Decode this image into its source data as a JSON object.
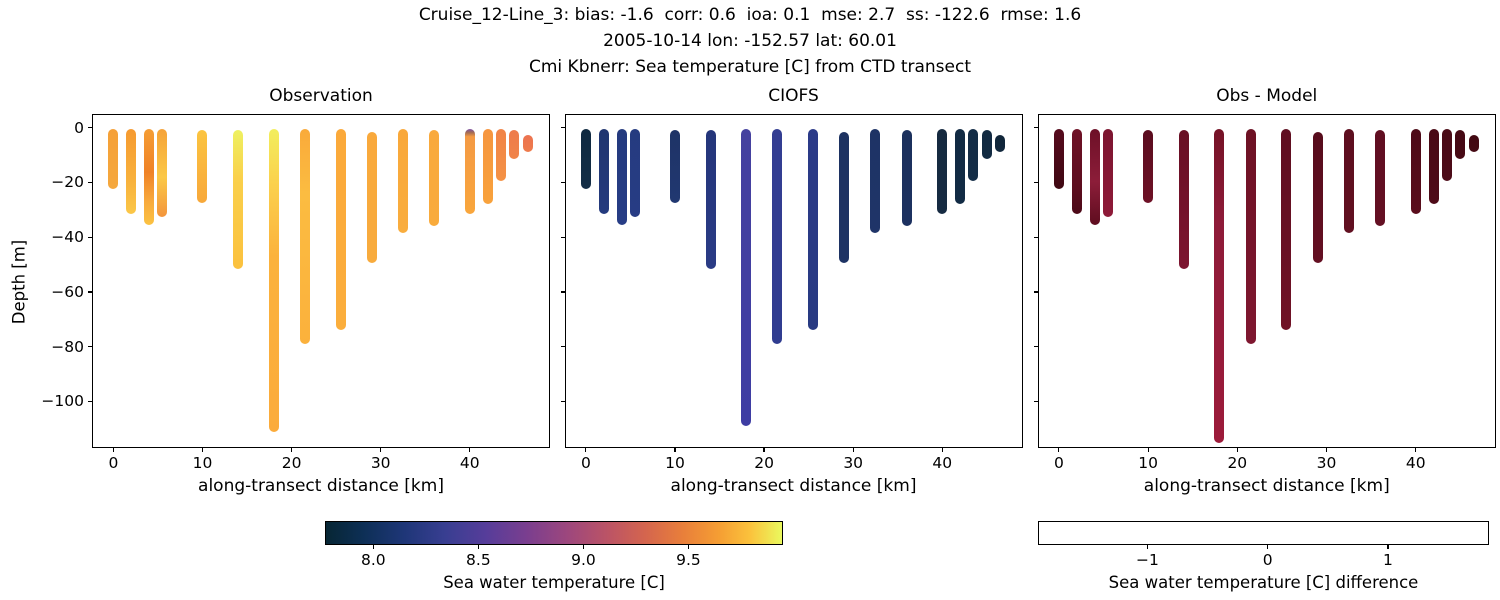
{
  "figure_title": {
    "line1": "Cruise_12-Line_3: bias: -1.6  corr: 0.6  ioa: 0.1  mse: 2.7  ss: -122.6  rmse: 1.6",
    "line2": "2005-10-14 lon: -152.57 lat: 60.01",
    "line3": "Cmi Kbnerr: Sea temperature [C] from CTD transect"
  },
  "chart_data": {
    "type": "scatter",
    "description": "Three-panel CTD transect section plot: vertical temperature casts colored by value, versus depth and along-transect distance",
    "xlabel": "along-transect distance [km]",
    "ylabel": "Depth [m]",
    "xlim": [
      -2.4,
      49
    ],
    "ylim": [
      -117,
      5
    ],
    "xticks": [
      0,
      10,
      20,
      30,
      40
    ],
    "xtick_labels": [
      "0",
      "10",
      "20",
      "30",
      "40"
    ],
    "yticks": [
      0,
      -20,
      -40,
      -60,
      -80,
      -100
    ],
    "ytick_labels": [
      "0",
      "−20",
      "−40",
      "−60",
      "−80",
      "−100"
    ],
    "cast_x_km": [
      0,
      2,
      4,
      5.5,
      10,
      14,
      18,
      21.5,
      25.5,
      29,
      32.5,
      36,
      40,
      42,
      43.5,
      45,
      46.5
    ],
    "panels": [
      {
        "title": "Observation",
        "bars": [
          {
            "x": 0,
            "top": -0.5,
            "bottom": -22.5,
            "grad": [
              [
                0,
                "#f5a037"
              ],
              [
                100,
                "#f5a83e"
              ]
            ]
          },
          {
            "x": 2,
            "top": -0.5,
            "bottom": -31.5,
            "grad": [
              [
                0,
                "#f69a30"
              ],
              [
                60,
                "#f8b13c"
              ],
              [
                100,
                "#fbc748"
              ]
            ]
          },
          {
            "x": 4,
            "top": -0.5,
            "bottom": -35.5,
            "grad": [
              [
                0,
                "#f59d34"
              ],
              [
                45,
                "#ef8226"
              ],
              [
                75,
                "#f8a93c"
              ],
              [
                100,
                "#fbc242"
              ]
            ]
          },
          {
            "x": 5.5,
            "top": -0.5,
            "bottom": -32.5,
            "grad": [
              [
                0,
                "#f5a238"
              ],
              [
                55,
                "#fbc846"
              ],
              [
                100,
                "#f3953c"
              ]
            ]
          },
          {
            "x": 10,
            "top": -1,
            "bottom": -27.5,
            "grad": [
              [
                0,
                "#fbc440"
              ],
              [
                70,
                "#f9b03c"
              ],
              [
                100,
                "#f7a83a"
              ]
            ]
          },
          {
            "x": 14,
            "top": -1,
            "bottom": -51.5,
            "grad": [
              [
                0,
                "#eef161"
              ],
              [
                35,
                "#fad04b"
              ],
              [
                100,
                "#fbc13e"
              ]
            ]
          },
          {
            "x": 18,
            "top": -0.5,
            "bottom": -111,
            "grad": [
              [
                0,
                "#f2ee5d"
              ],
              [
                18,
                "#fbd14d"
              ],
              [
                42,
                "#fbb23c"
              ],
              [
                100,
                "#fbab3b"
              ]
            ]
          },
          {
            "x": 21.5,
            "top": -0.5,
            "bottom": -79,
            "grad": [
              [
                0,
                "#f9aa3a"
              ],
              [
                30,
                "#fbbc41"
              ],
              [
                100,
                "#fbb13c"
              ]
            ]
          },
          {
            "x": 25.5,
            "top": -0.5,
            "bottom": -74,
            "grad": [
              [
                0,
                "#fba93a"
              ],
              [
                100,
                "#fbae3c"
              ]
            ]
          },
          {
            "x": 29,
            "top": -1.5,
            "bottom": -49.5,
            "grad": [
              [
                0,
                "#f9a93c"
              ],
              [
                100,
                "#f8ab3d"
              ]
            ]
          },
          {
            "x": 32.5,
            "top": -0.5,
            "bottom": -38.5,
            "grad": [
              [
                0,
                "#f9a83a"
              ],
              [
                100,
                "#f9ad3e"
              ]
            ]
          },
          {
            "x": 36,
            "top": -1,
            "bottom": -36,
            "grad": [
              [
                0,
                "#f9a93c"
              ],
              [
                100,
                "#f9ab3c"
              ]
            ]
          },
          {
            "x": 40,
            "top": -0.5,
            "bottom": -31.5,
            "grad": [
              [
                0,
                "#7d53a8"
              ],
              [
                4,
                "#a06a55"
              ],
              [
                9,
                "#f49a44"
              ],
              [
                100,
                "#f9a63c"
              ]
            ]
          },
          {
            "x": 42,
            "top": -0.5,
            "bottom": -28,
            "grad": [
              [
                0,
                "#f6953f"
              ],
              [
                100,
                "#f8a23c"
              ]
            ]
          },
          {
            "x": 43.5,
            "top": -0.5,
            "bottom": -19.5,
            "grad": [
              [
                0,
                "#f18347"
              ],
              [
                100,
                "#f49245"
              ]
            ]
          },
          {
            "x": 45,
            "top": -1,
            "bottom": -11.5,
            "grad": [
              [
                0,
                "#ee7a4b"
              ],
              [
                100,
                "#f08449"
              ]
            ]
          },
          {
            "x": 46.5,
            "top": -2.5,
            "bottom": -9,
            "grad": [
              [
                0,
                "#ec7350"
              ],
              [
                100,
                "#ee7b4c"
              ]
            ]
          }
        ]
      },
      {
        "title": "CIOFS",
        "bars": [
          {
            "x": 0,
            "top": -0.5,
            "bottom": -22.5,
            "grad": [
              [
                0,
                "#0f2940"
              ],
              [
                100,
                "#142e47"
              ]
            ]
          },
          {
            "x": 2,
            "top": -0.5,
            "bottom": -31.5,
            "grad": [
              [
                0,
                "#20356f"
              ],
              [
                100,
                "#243a7e"
              ]
            ]
          },
          {
            "x": 4,
            "top": -0.5,
            "bottom": -35.5,
            "grad": [
              [
                0,
                "#243a7e"
              ],
              [
                100,
                "#273d86"
              ]
            ]
          },
          {
            "x": 5.5,
            "top": -0.5,
            "bottom": -32.5,
            "grad": [
              [
                0,
                "#253b80"
              ],
              [
                100,
                "#273c84"
              ]
            ]
          },
          {
            "x": 10,
            "top": -1,
            "bottom": -27.5,
            "grad": [
              [
                0,
                "#1e3366"
              ],
              [
                100,
                "#213871"
              ]
            ]
          },
          {
            "x": 14,
            "top": -1,
            "bottom": -51.5,
            "grad": [
              [
                0,
                "#24357a"
              ],
              [
                100,
                "#2a3b85"
              ]
            ]
          },
          {
            "x": 18,
            "top": -0.5,
            "bottom": -109,
            "grad": [
              [
                0,
                "#45419f"
              ],
              [
                100,
                "#3e3da3"
              ]
            ]
          },
          {
            "x": 21.5,
            "top": -0.5,
            "bottom": -79,
            "grad": [
              [
                0,
                "#333d92"
              ],
              [
                100,
                "#303c90"
              ]
            ]
          },
          {
            "x": 25.5,
            "top": -0.5,
            "bottom": -74,
            "grad": [
              [
                0,
                "#2b3a88"
              ],
              [
                100,
                "#283a82"
              ]
            ]
          },
          {
            "x": 29,
            "top": -1.5,
            "bottom": -49.5,
            "grad": [
              [
                0,
                "#1d3261"
              ],
              [
                100,
                "#1e3364"
              ]
            ]
          },
          {
            "x": 32.5,
            "top": -0.5,
            "bottom": -38.5,
            "grad": [
              [
                0,
                "#1e3365"
              ],
              [
                100,
                "#1f3468"
              ]
            ]
          },
          {
            "x": 36,
            "top": -1,
            "bottom": -36,
            "grad": [
              [
                0,
                "#1b305c"
              ],
              [
                100,
                "#1c3160"
              ]
            ]
          },
          {
            "x": 40,
            "top": -0.5,
            "bottom": -31.5,
            "grad": [
              [
                0,
                "#15293f"
              ],
              [
                100,
                "#162b42"
              ]
            ]
          },
          {
            "x": 42,
            "top": -0.5,
            "bottom": -28,
            "grad": [
              [
                0,
                "#112a43"
              ],
              [
                100,
                "#122b44"
              ]
            ]
          },
          {
            "x": 43.5,
            "top": -0.5,
            "bottom": -19.5,
            "grad": [
              [
                0,
                "#132c46"
              ],
              [
                100,
                "#142d47"
              ]
            ]
          },
          {
            "x": 45,
            "top": -1,
            "bottom": -11.5,
            "grad": [
              [
                0,
                "#122a41"
              ],
              [
                100,
                "#132b43"
              ]
            ]
          },
          {
            "x": 46.5,
            "top": -2.5,
            "bottom": -9,
            "grad": [
              [
                0,
                "#102539"
              ],
              [
                100,
                "#11273c"
              ]
            ]
          }
        ]
      },
      {
        "title": "Obs - Model",
        "bars": [
          {
            "x": 0,
            "top": -0.5,
            "bottom": -22.5,
            "grad": [
              [
                0,
                "#560a1d"
              ],
              [
                100,
                "#3f0812"
              ]
            ]
          },
          {
            "x": 2,
            "top": -0.5,
            "bottom": -31.5,
            "grad": [
              [
                0,
                "#6f1126"
              ],
              [
                70,
                "#5c0d1e"
              ],
              [
                100,
                "#4c0a18"
              ]
            ]
          },
          {
            "x": 4,
            "top": -0.5,
            "bottom": -35.5,
            "grad": [
              [
                0,
                "#6d1027"
              ],
              [
                55,
                "#8c1d39"
              ],
              [
                100,
                "#5e0d1f"
              ]
            ]
          },
          {
            "x": 5.5,
            "top": -0.5,
            "bottom": -32.5,
            "grad": [
              [
                0,
                "#7c1530"
              ],
              [
                100,
                "#8e1a38"
              ]
            ]
          },
          {
            "x": 10,
            "top": -1,
            "bottom": -27.5,
            "grad": [
              [
                0,
                "#5a0c1e"
              ],
              [
                100,
                "#6e1126"
              ]
            ]
          },
          {
            "x": 14,
            "top": -1,
            "bottom": -51.5,
            "grad": [
              [
                0,
                "#680f24"
              ],
              [
                100,
                "#7d1530"
              ]
            ]
          },
          {
            "x": 18,
            "top": -0.5,
            "bottom": -115,
            "grad": [
              [
                0,
                "#751226"
              ],
              [
                30,
                "#8e1b39"
              ],
              [
                100,
                "#9c1b3a"
              ]
            ]
          },
          {
            "x": 21.5,
            "top": -0.5,
            "bottom": -79,
            "grad": [
              [
                0,
                "#6d1124"
              ],
              [
                100,
                "#7f1730"
              ]
            ]
          },
          {
            "x": 25.5,
            "top": -0.5,
            "bottom": -74,
            "grad": [
              [
                0,
                "#5f0e20"
              ],
              [
                100,
                "#701226"
              ]
            ]
          },
          {
            "x": 29,
            "top": -1.5,
            "bottom": -49.5,
            "grad": [
              [
                0,
                "#570c1c"
              ],
              [
                100,
                "#640f22"
              ]
            ]
          },
          {
            "x": 32.5,
            "top": -0.5,
            "bottom": -38.5,
            "grad": [
              [
                0,
                "#5d0e1f"
              ],
              [
                100,
                "#611021"
              ]
            ]
          },
          {
            "x": 36,
            "top": -1,
            "bottom": -36,
            "grad": [
              [
                0,
                "#600e21"
              ],
              [
                100,
                "#641023"
              ]
            ]
          },
          {
            "x": 40,
            "top": -0.5,
            "bottom": -31.5,
            "grad": [
              [
                0,
                "#4d0a17"
              ],
              [
                100,
                "#5a0d1c"
              ]
            ]
          },
          {
            "x": 42,
            "top": -0.5,
            "bottom": -28,
            "grad": [
              [
                0,
                "#490915"
              ],
              [
                100,
                "#4e0b18"
              ]
            ]
          },
          {
            "x": 43.5,
            "top": -0.5,
            "bottom": -19.5,
            "grad": [
              [
                0,
                "#4a0a16"
              ],
              [
                100,
                "#4d0b18"
              ]
            ]
          },
          {
            "x": 45,
            "top": -1,
            "bottom": -11.5,
            "grad": [
              [
                0,
                "#450813"
              ],
              [
                100,
                "#480915"
              ]
            ]
          },
          {
            "x": 46.5,
            "top": -2.5,
            "bottom": -9,
            "grad": [
              [
                0,
                "#420811"
              ],
              [
                100,
                "#450913"
              ]
            ]
          }
        ]
      }
    ],
    "colorbars": [
      {
        "label": "Sea water temperature [C]",
        "ticks": [
          8.0,
          8.5,
          9.0,
          9.5
        ],
        "tick_labels": [
          "8.0",
          "8.5",
          "9.0",
          "9.5"
        ],
        "vmin": 7.77,
        "vmax": 9.95,
        "colormap": "thermal",
        "stops": [
          [
            0,
            "#072634"
          ],
          [
            8,
            "#0d2f55"
          ],
          [
            17,
            "#1e3677"
          ],
          [
            26,
            "#383e91"
          ],
          [
            35,
            "#563d9a"
          ],
          [
            44,
            "#7a3e8f"
          ],
          [
            53,
            "#9d477d"
          ],
          [
            62,
            "#bc5465"
          ],
          [
            70,
            "#d4654e"
          ],
          [
            78,
            "#e87e3b"
          ],
          [
            86,
            "#f59d33"
          ],
          [
            93,
            "#fbc23c"
          ],
          [
            100,
            "#eaf95e"
          ]
        ]
      },
      {
        "label": "Sea water temperature [C] difference",
        "ticks": [
          -1,
          0,
          1
        ],
        "tick_labels": [
          "−1",
          "0",
          "1"
        ],
        "vmin": -1.91,
        "vmax": 1.84,
        "colormap": "balance",
        "stops": [
          [
            0,
            "#141e4d"
          ],
          [
            7,
            "#1b3c92"
          ],
          [
            15,
            "#2563b0"
          ],
          [
            24,
            "#4e90c3"
          ],
          [
            33,
            "#90bad5"
          ],
          [
            42,
            "#cdddе6"
          ],
          [
            50,
            "#f6f1ee"
          ],
          [
            58,
            "#eed8ca"
          ],
          [
            67,
            "#e0b098"
          ],
          [
            75,
            "#d08267"
          ],
          [
            83,
            "#bd5140"
          ],
          [
            90,
            "#a02a2e"
          ],
          [
            96,
            "#6f1021"
          ],
          [
            100,
            "#45060e"
          ]
        ]
      }
    ]
  }
}
